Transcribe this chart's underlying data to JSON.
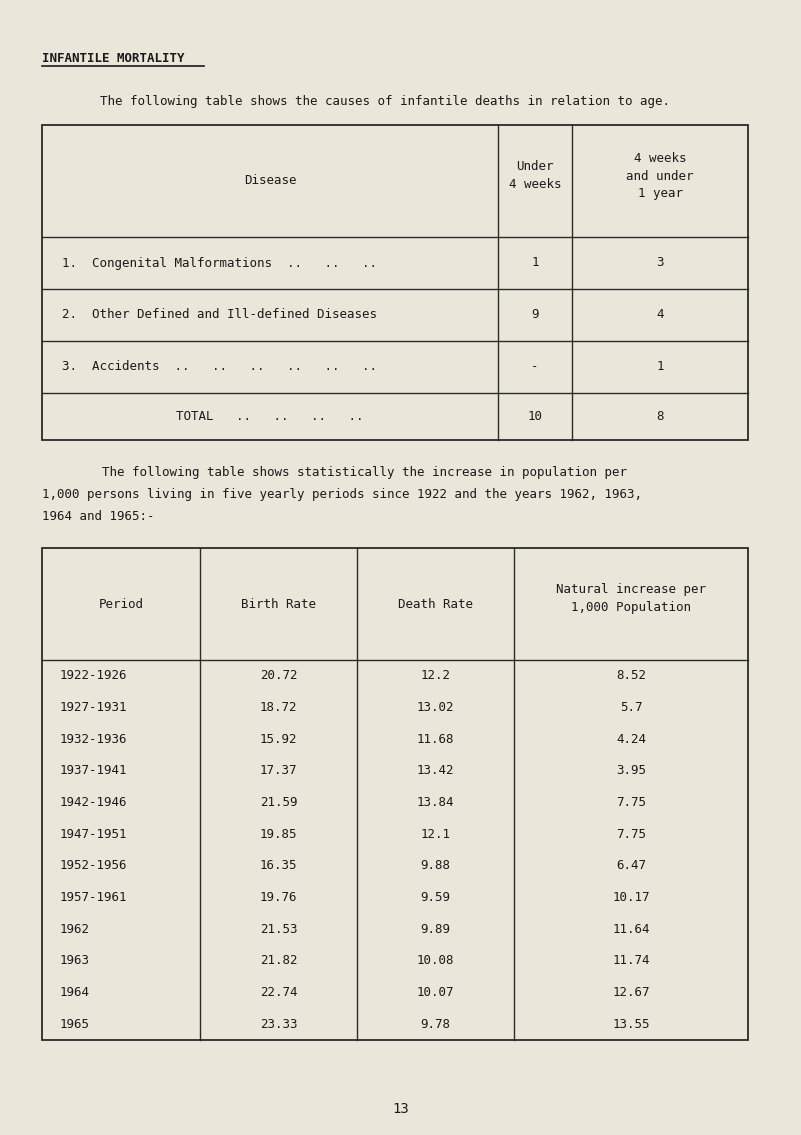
{
  "bg_color": "#eae6da",
  "title": "INFANTILE MORTALITY",
  "intro1": "The following table shows the causes of infantile deaths in relation to age.",
  "intro2_lines": [
    "        The following table shows statistically the increase in population per",
    "1,000 persons living in five yearly periods since 1922 and the years 1962, 1963,",
    "1964 and 1965:-"
  ],
  "page_number": "13",
  "table1_rows": [
    [
      "1.  Congenital Malformations  ..   ..   ..",
      "1",
      "3"
    ],
    [
      "2.  Other Defined and Ill-defined Diseases",
      "9",
      "4"
    ],
    [
      "3.  Accidents  ..   ..   ..   ..   ..   ..",
      "-",
      "1"
    ],
    [
      "TOTAL   ..   ..   ..   ..",
      "10",
      "8"
    ]
  ],
  "table2_rows": [
    [
      "1922-1926",
      "20.72",
      "12.2",
      "8.52"
    ],
    [
      "1927-1931",
      "18.72",
      "13.02",
      "5.7"
    ],
    [
      "1932-1936",
      "15.92",
      "11.68",
      "4.24"
    ],
    [
      "1937-1941",
      "17.37",
      "13.42",
      "3.95"
    ],
    [
      "1942-1946",
      "21.59",
      "13.84",
      "7.75"
    ],
    [
      "1947-1951",
      "19.85",
      "12.1",
      "7.75"
    ],
    [
      "1952-1956",
      "16.35",
      "9.88",
      "6.47"
    ],
    [
      "1957-1961",
      "19.76",
      "9.59",
      "10.17"
    ],
    [
      "1962",
      "21.53",
      "9.89",
      "11.64"
    ],
    [
      "1963",
      "21.82",
      "10.08",
      "11.74"
    ],
    [
      "1964",
      "22.74",
      "10.07",
      "12.67"
    ],
    [
      "1965",
      "23.33",
      "9.78",
      "13.55"
    ]
  ]
}
